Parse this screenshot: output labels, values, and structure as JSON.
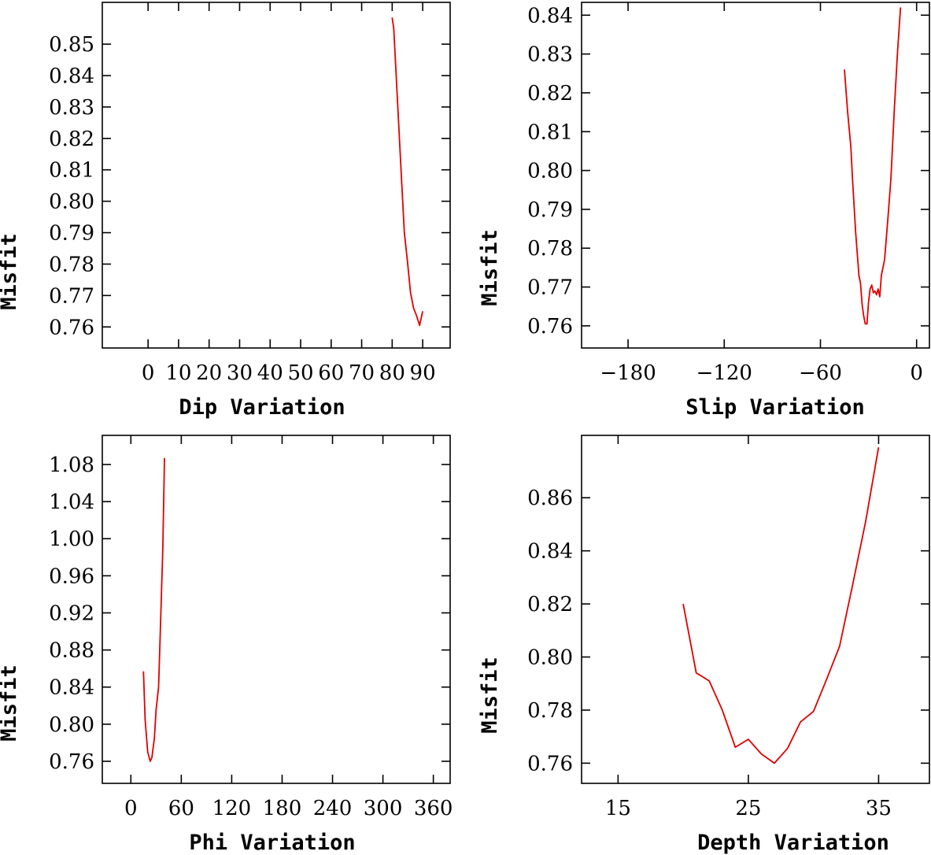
{
  "style": {
    "line_color": "#e00000",
    "axis_color": "#000000",
    "background": "#ffffff"
  },
  "chart_data": [
    {
      "type": "line",
      "xlabel": "Dip   Variation",
      "ylabel": "Misfit",
      "xlim": [
        -15,
        99
      ],
      "ylim": [
        0.7533,
        0.8633
      ],
      "xticks": [
        0,
        10,
        20,
        30,
        40,
        50,
        60,
        70,
        80,
        90
      ],
      "yticks": [
        0.76,
        0.77,
        0.78,
        0.79,
        0.8,
        0.81,
        0.82,
        0.83,
        0.84,
        0.85
      ],
      "ytick_labels": [
        "0.76",
        "0.77",
        "0.78",
        "0.79",
        "0.80",
        "0.81",
        "0.82",
        "0.83",
        "0.84",
        "0.85"
      ],
      "x": [
        80,
        80.5,
        81,
        82,
        83,
        84,
        85,
        86,
        87,
        88,
        89,
        90
      ],
      "y": [
        0.8585,
        0.855,
        0.846,
        0.827,
        0.808,
        0.79,
        0.781,
        0.771,
        0.766,
        0.7635,
        0.7605,
        0.765
      ]
    },
    {
      "type": "line",
      "xlabel": "Slip   Variation",
      "ylabel": "Misfit",
      "xlim": [
        -209,
        8
      ],
      "ylim": [
        0.7543,
        0.8433
      ],
      "xticks": [
        -180,
        -120,
        -60,
        0
      ],
      "xtick_labels": [
        "−180",
        "−120",
        "−60",
        "0"
      ],
      "yticks": [
        0.76,
        0.77,
        0.78,
        0.79,
        0.8,
        0.81,
        0.82,
        0.83,
        0.84
      ],
      "ytick_labels": [
        "0.76",
        "0.77",
        "0.78",
        "0.79",
        "0.80",
        "0.81",
        "0.82",
        "0.83",
        "0.84"
      ],
      "x": [
        -45,
        -43,
        -41,
        -40,
        -38,
        -36,
        -35,
        -34,
        -33,
        -32,
        -31,
        -30,
        -29,
        -28,
        -27,
        -26,
        -25,
        -24,
        -23,
        -22,
        -20,
        -18,
        -16,
        -14,
        -12,
        -10
      ],
      "y": [
        0.826,
        0.815,
        0.806,
        0.798,
        0.784,
        0.773,
        0.771,
        0.7655,
        0.7625,
        0.7605,
        0.7605,
        0.766,
        0.7695,
        0.7705,
        0.7685,
        0.769,
        0.768,
        0.7695,
        0.7675,
        0.773,
        0.777,
        0.787,
        0.798,
        0.815,
        0.83,
        0.842
      ]
    },
    {
      "type": "line",
      "xlabel": "Phi    Variation",
      "ylabel": "Misfit",
      "xlim": [
        -34,
        380
      ],
      "ylim": [
        0.7362,
        1.1114
      ],
      "xticks": [
        0,
        60,
        120,
        180,
        240,
        300,
        360
      ],
      "yticks": [
        0.76,
        0.8,
        0.84,
        0.88,
        0.92,
        0.96,
        1.0,
        1.04,
        1.08
      ],
      "ytick_labels": [
        "0.76",
        "0.80",
        "0.84",
        "0.88",
        "0.92",
        "0.96",
        "1.00",
        "1.04",
        "1.08"
      ],
      "x": [
        15,
        17,
        20,
        23,
        25,
        28,
        30,
        33,
        35,
        38,
        40
      ],
      "y": [
        0.857,
        0.805,
        0.77,
        0.76,
        0.764,
        0.785,
        0.815,
        0.84,
        0.9,
        0.99,
        1.087
      ]
    },
    {
      "type": "line",
      "xlabel": "Depth  Variation",
      "ylabel": "Misfit",
      "xlim": [
        12.2,
        38.9
      ],
      "ylim": [
        0.7524,
        0.8835
      ],
      "xticks": [
        15,
        25,
        35
      ],
      "yticks": [
        0.76,
        0.78,
        0.8,
        0.82,
        0.84,
        0.86
      ],
      "ytick_labels": [
        "0.76",
        "0.78",
        "0.80",
        "0.82",
        "0.84",
        "0.86"
      ],
      "x": [
        20,
        21,
        22,
        23,
        24,
        25,
        26,
        27,
        28,
        29,
        30,
        31,
        32,
        33,
        34,
        35
      ],
      "y": [
        0.82,
        0.794,
        0.791,
        0.78,
        0.766,
        0.769,
        0.7635,
        0.76,
        0.7655,
        0.7755,
        0.7795,
        0.7915,
        0.804,
        0.827,
        0.851,
        0.879
      ]
    }
  ]
}
